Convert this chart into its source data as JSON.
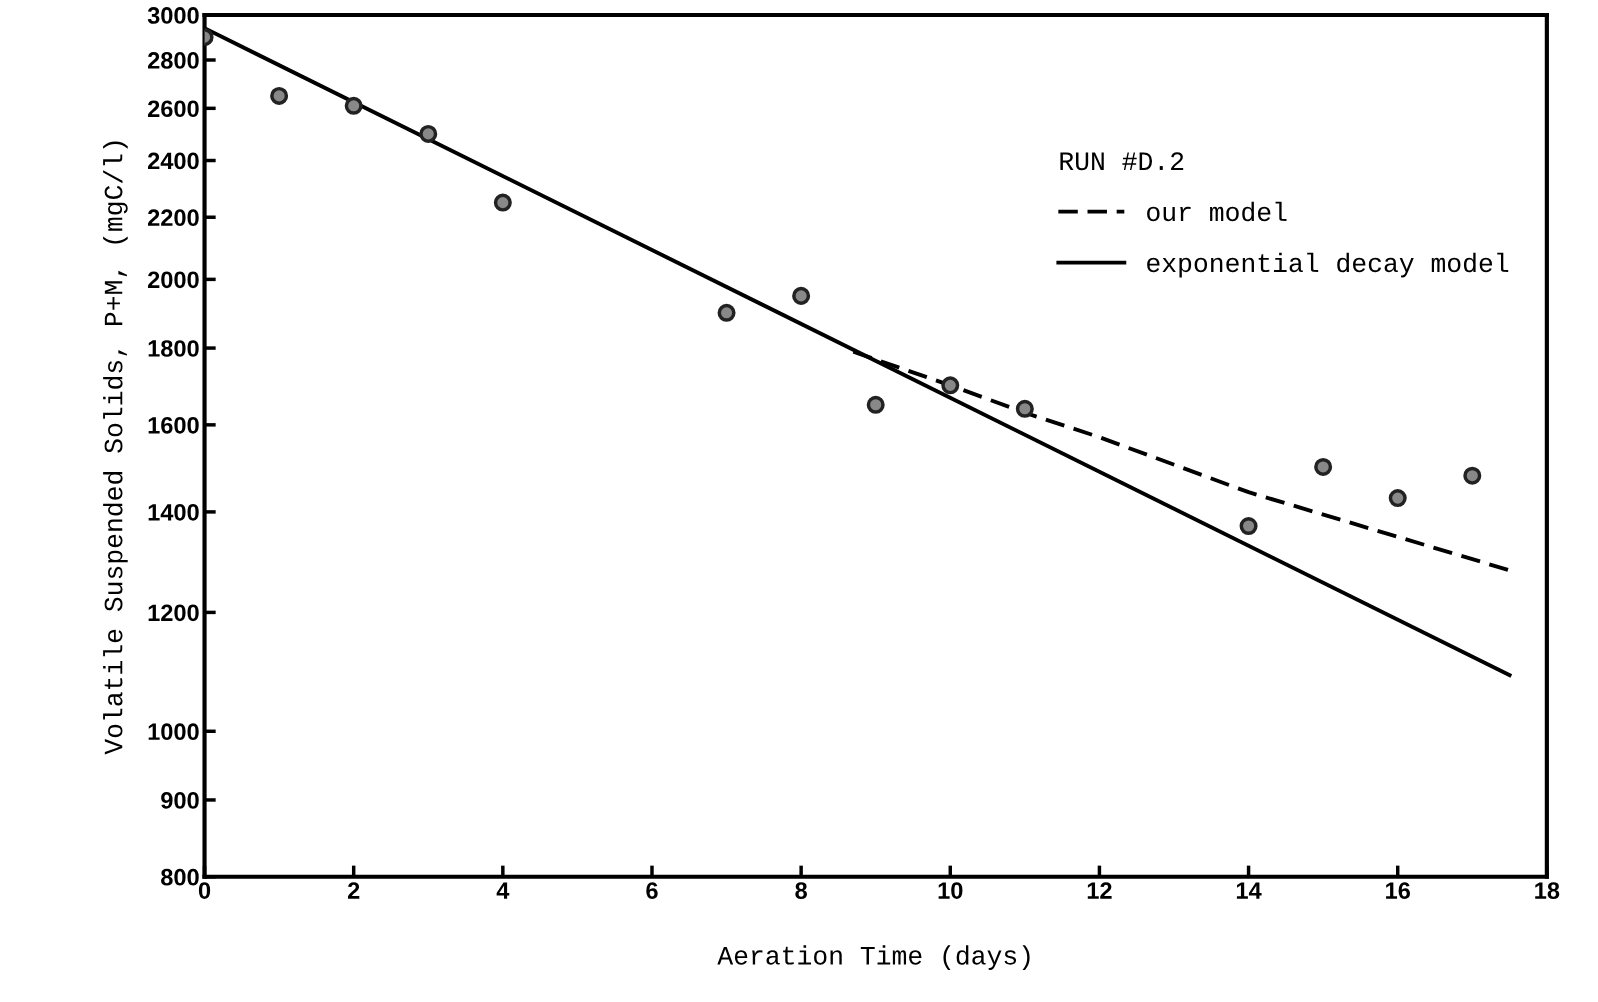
{
  "chart_data": {
    "type": "scatter",
    "xlabel": "Aeration Time (days)",
    "ylabel": "Volatile Suspended Solids, P+M, (mgC/l)",
    "legend_title": "RUN #D.2",
    "legend": "top right",
    "log": "y",
    "grid": false,
    "xlim": [
      0,
      18
    ],
    "xticks": [
      0,
      2,
      4,
      6,
      8,
      10,
      12,
      14,
      16,
      18
    ],
    "ylim": [
      800,
      3000
    ],
    "yticks": [
      800,
      900,
      1000,
      1200,
      1400,
      1600,
      1800,
      2000,
      2200,
      2400,
      2600,
      2800,
      3000
    ],
    "series": [
      {
        "color": "#888888",
        "marker": "circle",
        "x": [
          0,
          1,
          2,
          3,
          4,
          7,
          8,
          9,
          10,
          11,
          14,
          15,
          16,
          17
        ],
        "values": [
          2900,
          2650,
          2610,
          2500,
          2250,
          1900,
          1950,
          1650,
          1700,
          1640,
          1370,
          1500,
          1430,
          1480
        ]
      },
      {
        "type": "line",
        "name": "our model",
        "color": "#000000",
        "line_style": "dashed",
        "x": [
          8.7,
          10,
          11,
          12,
          14,
          17.5
        ],
        "values": [
          1790,
          1700,
          1630,
          1570,
          1443,
          1280
        ]
      },
      {
        "type": "line",
        "name": "exponential decay model",
        "color": "#000000",
        "line_style": "solid",
        "x": [
          0,
          17.5
        ],
        "values": [
          2940,
          1090
        ]
      }
    ]
  }
}
